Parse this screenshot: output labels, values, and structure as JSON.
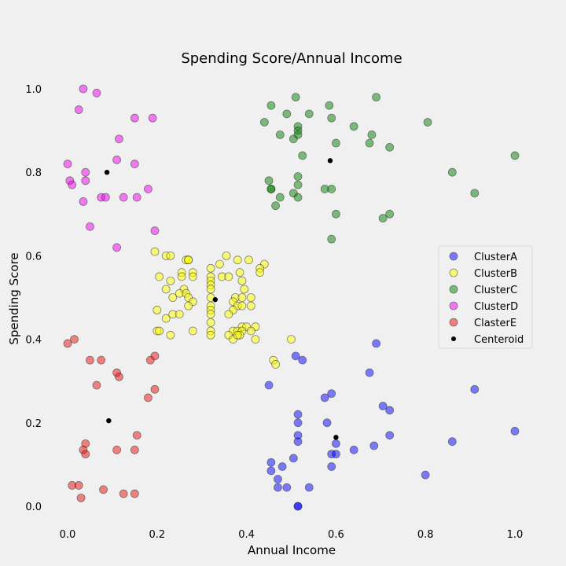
{
  "chart_data": {
    "type": "scatter",
    "title": "Spending Score/Annual Income",
    "xlabel": "Annual Income",
    "ylabel": "Spending Score",
    "xlim": [
      -0.05,
      1.05
    ],
    "ylim": [
      -0.05,
      1.05
    ],
    "xticks": [
      0.0,
      0.2,
      0.4,
      0.6,
      0.8,
      1.0
    ],
    "yticks": [
      0.0,
      0.2,
      0.4,
      0.6,
      0.8,
      1.0
    ],
    "xtick_labels": [
      "0.0",
      "0.2",
      "0.4",
      "0.6",
      "0.8",
      "1.0"
    ],
    "ytick_labels": [
      "0.0",
      "0.2",
      "0.4",
      "0.6",
      "0.8",
      "1.0"
    ],
    "grid": false,
    "legend_position": "right",
    "series": [
      {
        "name": "ClusterA",
        "color": "#0000ff",
        "points": [
          [
            0.51,
            0.36
          ],
          [
            0.525,
            0.35
          ],
          [
            0.45,
            0.29
          ],
          [
            0.69,
            0.39
          ],
          [
            0.675,
            0.32
          ],
          [
            0.91,
            0.28
          ],
          [
            0.59,
            0.27
          ],
          [
            0.575,
            0.26
          ],
          [
            0.705,
            0.24
          ],
          [
            0.72,
            0.23
          ],
          [
            0.515,
            0.22
          ],
          [
            0.515,
            0.2
          ],
          [
            0.58,
            0.2
          ],
          [
            1.0,
            0.18
          ],
          [
            0.515,
            0.17
          ],
          [
            0.72,
            0.17
          ],
          [
            0.515,
            0.155
          ],
          [
            0.86,
            0.155
          ],
          [
            0.6,
            0.15
          ],
          [
            0.685,
            0.145
          ],
          [
            0.64,
            0.135
          ],
          [
            0.59,
            0.125
          ],
          [
            0.6,
            0.125
          ],
          [
            0.505,
            0.115
          ],
          [
            0.455,
            0.105
          ],
          [
            0.455,
            0.085
          ],
          [
            0.48,
            0.095
          ],
          [
            0.59,
            0.095
          ],
          [
            0.8,
            0.075
          ],
          [
            0.47,
            0.065
          ],
          [
            0.47,
            0.045
          ],
          [
            0.49,
            0.045
          ],
          [
            0.54,
            0.045
          ],
          [
            0.515,
            0.0
          ],
          [
            0.515,
            0.0
          ]
        ]
      },
      {
        "name": "ClusterB",
        "color": "#ffff00",
        "points": [
          [
            0.195,
            0.61
          ],
          [
            0.22,
            0.6
          ],
          [
            0.23,
            0.6
          ],
          [
            0.265,
            0.59
          ],
          [
            0.27,
            0.59
          ],
          [
            0.27,
            0.59
          ],
          [
            0.355,
            0.6
          ],
          [
            0.38,
            0.59
          ],
          [
            0.405,
            0.59
          ],
          [
            0.44,
            0.58
          ],
          [
            0.32,
            0.57
          ],
          [
            0.43,
            0.57
          ],
          [
            0.34,
            0.58
          ],
          [
            0.255,
            0.56
          ],
          [
            0.28,
            0.56
          ],
          [
            0.205,
            0.55
          ],
          [
            0.255,
            0.55
          ],
          [
            0.28,
            0.55
          ],
          [
            0.32,
            0.55
          ],
          [
            0.345,
            0.55
          ],
          [
            0.36,
            0.55
          ],
          [
            0.385,
            0.56
          ],
          [
            0.43,
            0.56
          ],
          [
            0.23,
            0.54
          ],
          [
            0.32,
            0.54
          ],
          [
            0.39,
            0.54
          ],
          [
            0.32,
            0.53
          ],
          [
            0.22,
            0.52
          ],
          [
            0.26,
            0.52
          ],
          [
            0.32,
            0.52
          ],
          [
            0.395,
            0.52
          ],
          [
            0.25,
            0.51
          ],
          [
            0.265,
            0.51
          ],
          [
            0.32,
            0.5
          ],
          [
            0.235,
            0.5
          ],
          [
            0.27,
            0.5
          ],
          [
            0.375,
            0.5
          ],
          [
            0.39,
            0.5
          ],
          [
            0.41,
            0.5
          ],
          [
            0.28,
            0.49
          ],
          [
            0.37,
            0.49
          ],
          [
            0.38,
            0.48
          ],
          [
            0.32,
            0.48
          ],
          [
            0.27,
            0.48
          ],
          [
            0.39,
            0.48
          ],
          [
            0.41,
            0.48
          ],
          [
            0.2,
            0.47
          ],
          [
            0.32,
            0.47
          ],
          [
            0.37,
            0.47
          ],
          [
            0.235,
            0.46
          ],
          [
            0.25,
            0.46
          ],
          [
            0.36,
            0.46
          ],
          [
            0.32,
            0.46
          ],
          [
            0.22,
            0.45
          ],
          [
            0.32,
            0.44
          ],
          [
            0.39,
            0.43
          ],
          [
            0.4,
            0.43
          ],
          [
            0.42,
            0.43
          ],
          [
            0.2,
            0.42
          ],
          [
            0.205,
            0.42
          ],
          [
            0.28,
            0.42
          ],
          [
            0.32,
            0.42
          ],
          [
            0.37,
            0.42
          ],
          [
            0.38,
            0.42
          ],
          [
            0.39,
            0.42
          ],
          [
            0.385,
            0.41
          ],
          [
            0.41,
            0.42
          ],
          [
            0.23,
            0.41
          ],
          [
            0.32,
            0.41
          ],
          [
            0.36,
            0.41
          ],
          [
            0.37,
            0.4
          ],
          [
            0.38,
            0.41
          ],
          [
            0.42,
            0.4
          ],
          [
            0.5,
            0.4
          ],
          [
            0.46,
            0.35
          ],
          [
            0.465,
            0.34
          ]
        ]
      },
      {
        "name": "ClusterC",
        "color": "#008000",
        "points": [
          [
            0.51,
            0.98
          ],
          [
            0.69,
            0.98
          ],
          [
            0.455,
            0.96
          ],
          [
            0.585,
            0.96
          ],
          [
            0.44,
            0.92
          ],
          [
            0.54,
            0.94
          ],
          [
            0.59,
            0.93
          ],
          [
            0.49,
            0.94
          ],
          [
            0.515,
            0.91
          ],
          [
            0.64,
            0.91
          ],
          [
            0.805,
            0.92
          ],
          [
            0.515,
            0.9
          ],
          [
            0.515,
            0.89
          ],
          [
            0.475,
            0.89
          ],
          [
            0.68,
            0.89
          ],
          [
            0.505,
            0.88
          ],
          [
            0.6,
            0.87
          ],
          [
            0.675,
            0.87
          ],
          [
            0.72,
            0.86
          ],
          [
            0.525,
            0.84
          ],
          [
            1.0,
            0.84
          ],
          [
            0.86,
            0.8
          ],
          [
            0.45,
            0.78
          ],
          [
            0.515,
            0.79
          ],
          [
            0.515,
            0.77
          ],
          [
            0.455,
            0.76
          ],
          [
            0.455,
            0.76
          ],
          [
            0.575,
            0.76
          ],
          [
            0.59,
            0.76
          ],
          [
            0.505,
            0.75
          ],
          [
            0.475,
            0.74
          ],
          [
            0.515,
            0.74
          ],
          [
            0.91,
            0.75
          ],
          [
            0.465,
            0.72
          ],
          [
            0.6,
            0.7
          ],
          [
            0.72,
            0.7
          ],
          [
            0.705,
            0.69
          ],
          [
            0.59,
            0.64
          ]
        ]
      },
      {
        "name": "ClusterD",
        "color": "#ee00ee",
        "points": [
          [
            0.035,
            1.0
          ],
          [
            0.065,
            0.99
          ],
          [
            0.025,
            0.95
          ],
          [
            0.15,
            0.93
          ],
          [
            0.19,
            0.93
          ],
          [
            0.115,
            0.88
          ],
          [
            0.11,
            0.83
          ],
          [
            0.0,
            0.82
          ],
          [
            0.15,
            0.82
          ],
          [
            0.04,
            0.8
          ],
          [
            0.005,
            0.78
          ],
          [
            0.01,
            0.77
          ],
          [
            0.04,
            0.78
          ],
          [
            0.18,
            0.76
          ],
          [
            0.075,
            0.74
          ],
          [
            0.085,
            0.74
          ],
          [
            0.125,
            0.74
          ],
          [
            0.155,
            0.74
          ],
          [
            0.035,
            0.73
          ],
          [
            0.05,
            0.67
          ],
          [
            0.195,
            0.66
          ],
          [
            0.11,
            0.62
          ]
        ]
      },
      {
        "name": "ClasterE",
        "color": "#e8100e",
        "points": [
          [
            0.015,
            0.4
          ],
          [
            0.0,
            0.39
          ],
          [
            0.05,
            0.35
          ],
          [
            0.075,
            0.35
          ],
          [
            0.195,
            0.36
          ],
          [
            0.185,
            0.35
          ],
          [
            0.11,
            0.32
          ],
          [
            0.115,
            0.31
          ],
          [
            0.065,
            0.29
          ],
          [
            0.195,
            0.28
          ],
          [
            0.18,
            0.26
          ],
          [
            0.155,
            0.17
          ],
          [
            0.04,
            0.15
          ],
          [
            0.035,
            0.135
          ],
          [
            0.04,
            0.125
          ],
          [
            0.11,
            0.135
          ],
          [
            0.15,
            0.135
          ],
          [
            0.01,
            0.05
          ],
          [
            0.025,
            0.05
          ],
          [
            0.08,
            0.04
          ],
          [
            0.03,
            0.02
          ],
          [
            0.125,
            0.03
          ],
          [
            0.15,
            0.03
          ]
        ]
      },
      {
        "name": "Centeroid",
        "color": "#000000",
        "points": [
          [
            0.088,
            0.8
          ],
          [
            0.33,
            0.495
          ],
          [
            0.587,
            0.828
          ],
          [
            0.092,
            0.205
          ],
          [
            0.6,
            0.165
          ]
        ]
      }
    ]
  }
}
